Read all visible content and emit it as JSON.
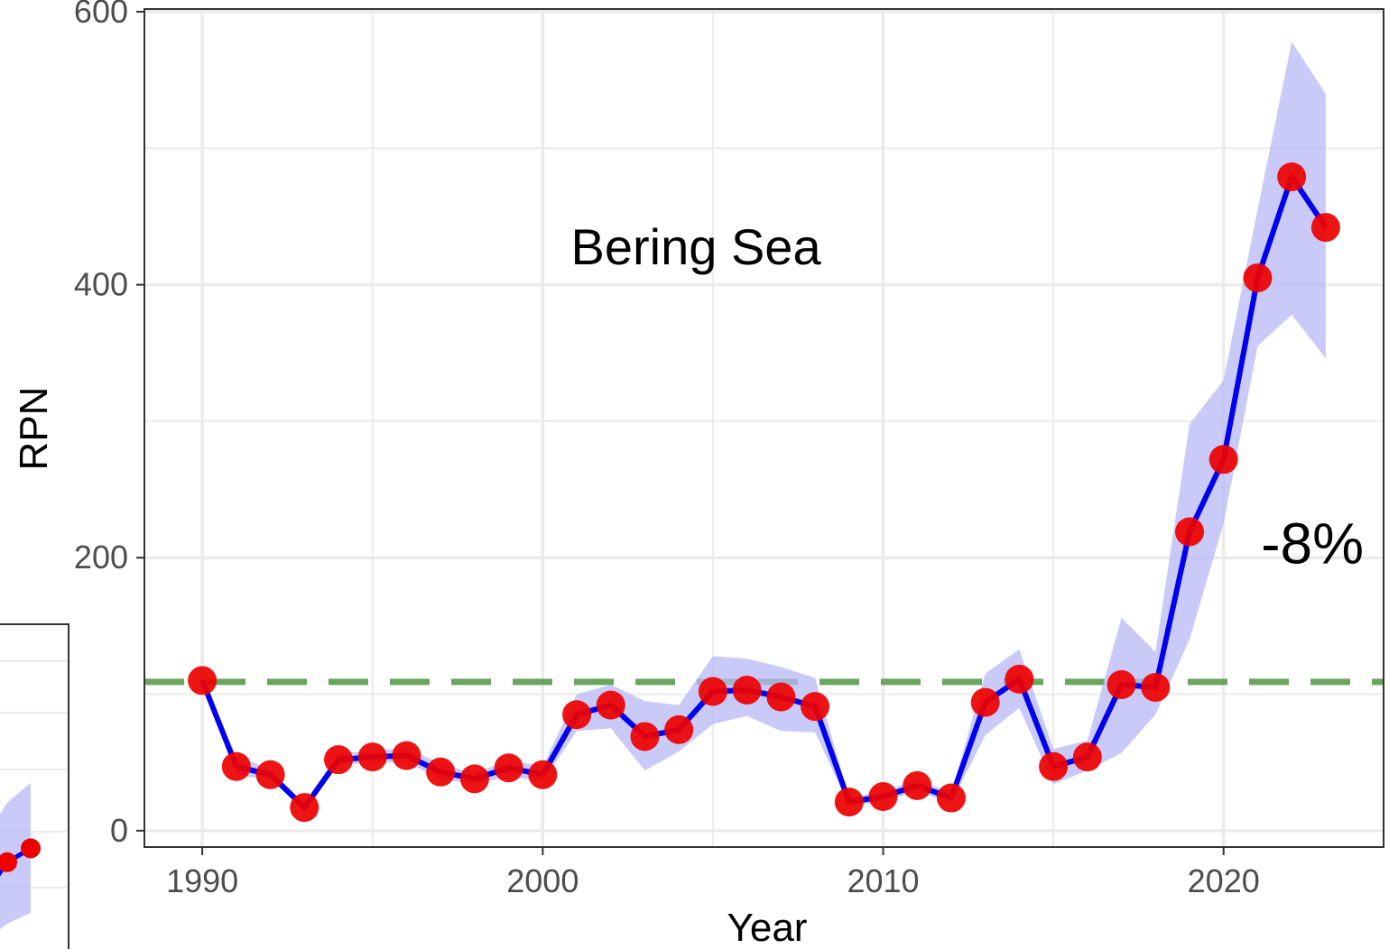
{
  "chart_data": {
    "type": "line",
    "title": "",
    "xlabel": "Year",
    "ylabel": "RPN",
    "xlim": [
      1988.3,
      2024.7
    ],
    "ylim": [
      -12,
      602
    ],
    "xticks": [
      1990,
      2000,
      2010,
      2020
    ],
    "yticks": [
      0,
      200,
      400,
      600
    ],
    "x_minor_gridlines": [
      1995,
      2005,
      2015
    ],
    "y_minor_gridlines": [
      100,
      300,
      500
    ],
    "grid": true,
    "annotations": [
      {
        "text": "Bering Sea",
        "x": 2004.5,
        "y": 415
      },
      {
        "text": "-8%",
        "x": 2021.1,
        "y": 196
      }
    ],
    "reference_line": {
      "y": 109,
      "color": "#6aa55f",
      "style": "dashed"
    },
    "colors": {
      "line": "#0000ee",
      "points": "#ee0000",
      "ribbon": "#b8b8f5",
      "axis": "#333333",
      "grid": "#ebebeb"
    },
    "series": [
      {
        "x": [
          1990,
          1991,
          1992,
          1993,
          1994,
          1995,
          1996,
          1997,
          1998,
          1999,
          2000,
          2001,
          2002,
          2003,
          2004,
          2005,
          2006,
          2007,
          2008,
          2009,
          2010,
          2011,
          2012,
          2013,
          2014,
          2015,
          2016,
          2017,
          2018,
          2019,
          2020,
          2021,
          2022,
          2023
        ],
        "values": [
          110,
          47,
          41,
          17,
          52,
          54,
          55,
          43,
          38,
          46,
          41,
          85,
          92,
          69,
          74,
          102,
          103,
          98,
          91,
          21,
          25,
          33,
          24,
          94,
          111,
          47,
          54,
          107,
          105,
          219,
          272,
          405,
          479,
          442
        ],
        "lower": [
          110,
          40,
          38,
          15,
          48,
          50,
          50,
          38,
          34,
          40,
          36,
          73,
          75,
          44,
          58,
          78,
          84,
          73,
          72,
          18,
          21,
          29,
          20,
          70,
          90,
          34,
          44,
          57,
          85,
          140,
          225,
          355,
          378,
          346
        ],
        "upper": [
          110,
          55,
          45,
          20,
          57,
          58,
          61,
          49,
          42,
          52,
          47,
          100,
          107,
          95,
          92,
          128,
          126,
          120,
          112,
          24,
          29,
          37,
          28,
          115,
          133,
          60,
          66,
          156,
          131,
          298,
          330,
          455,
          578,
          540
        ]
      }
    ]
  },
  "inset": {
    "values": [
      52,
      66
    ],
    "lower": [
      -10,
      1
    ],
    "upper": [
      112,
      132
    ]
  }
}
